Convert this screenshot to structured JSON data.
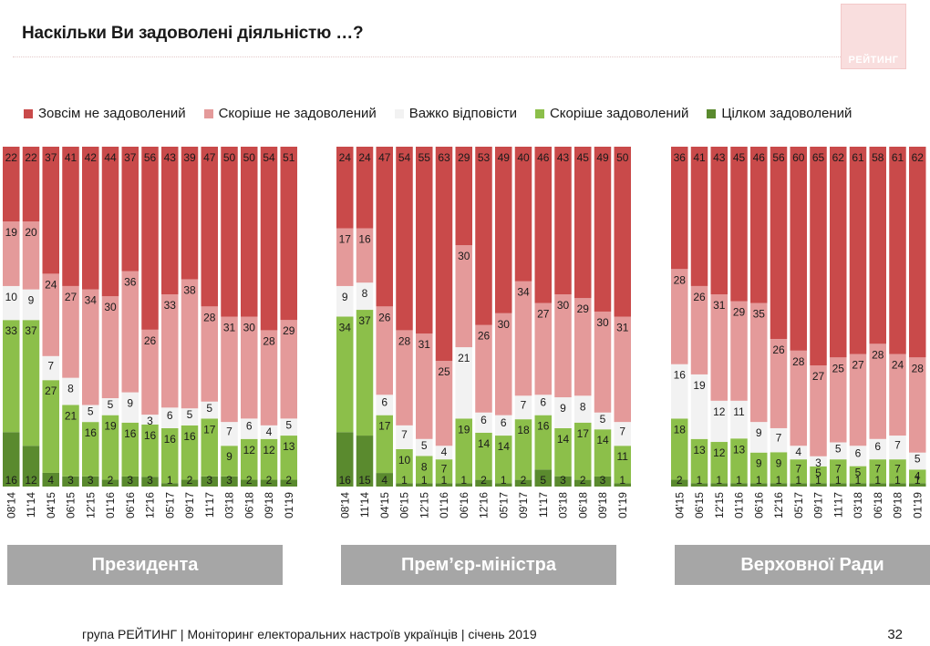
{
  "header": {
    "title": "Наскільки Ви задоволені діяльністю …?",
    "logo_text": "РЕЙТИНГ"
  },
  "footer": {
    "text": "група РЕЙТИНГ | Моніторинг електоральних настроїв українців | січень 2019",
    "page_number": "32"
  },
  "colors": {
    "very_dissatisfied": "#c94a4a",
    "rather_dissatisfied": "#e49a9a",
    "hard_to_say": "#f2f2f2",
    "rather_satisfied": "#8cbf4a",
    "fully_satisfied": "#5a8a2e"
  },
  "chart_data": {
    "type": "stacked-bar",
    "title": "Наскільки Ви задоволені діяльністю …?",
    "legend_position": "top",
    "series_names": [
      "Зовсім не задоволений",
      "Скоріше не задоволений",
      "Важко відповісти",
      "Скоріше задоволений",
      "Цілком задоволений"
    ],
    "panels": [
      {
        "label": "Президента",
        "categories": [
          "08'14",
          "11'14",
          "04'15",
          "06'15",
          "12'15",
          "01'16",
          "06'16",
          "12'16",
          "05'17",
          "09'17",
          "11'17",
          "03'18",
          "06'18",
          "09'18",
          "01'19"
        ],
        "series": [
          {
            "name": "Зовсім не задоволений",
            "values": [
              22,
              22,
              37,
              41,
              42,
              44,
              37,
              56,
              43,
              39,
              47,
              50,
              50,
              54,
              51
            ]
          },
          {
            "name": "Скоріше не задоволений",
            "values": [
              19,
              20,
              24,
              27,
              34,
              30,
              36,
              26,
              33,
              38,
              28,
              31,
              30,
              28,
              29
            ]
          },
          {
            "name": "Важко відповісти",
            "values": [
              10,
              9,
              7,
              8,
              5,
              5,
              9,
              3,
              6,
              5,
              5,
              7,
              6,
              4,
              5
            ]
          },
          {
            "name": "Скоріше задоволений",
            "values": [
              33,
              37,
              27,
              21,
              16,
              19,
              16,
              16,
              16,
              16,
              17,
              9,
              12,
              12,
              13
            ]
          },
          {
            "name": "Цілком задоволений",
            "values": [
              16,
              12,
              4,
              3,
              3,
              2,
              3,
              3,
              1,
              2,
              3,
              3,
              2,
              2,
              2
            ]
          }
        ]
      },
      {
        "label": "Прем’єр-міністра",
        "categories": [
          "08'14",
          "11'14",
          "04'15",
          "06'15",
          "12'15",
          "01'16",
          "06'16",
          "12'16",
          "05'17",
          "09'17",
          "11'17",
          "03'18",
          "06'18",
          "09'18",
          "01'19"
        ],
        "series": [
          {
            "name": "Зовсім не задоволений",
            "values": [
              24,
              24,
              47,
              54,
              55,
              63,
              29,
              53,
              49,
              40,
              46,
              43,
              45,
              49,
              50
            ]
          },
          {
            "name": "Скоріше не задоволений",
            "values": [
              17,
              16,
              26,
              28,
              31,
              25,
              30,
              26,
              30,
              34,
              27,
              30,
              29,
              30,
              31
            ]
          },
          {
            "name": "Важко відповісти",
            "values": [
              9,
              8,
              6,
              7,
              5,
              4,
              21,
              6,
              6,
              7,
              6,
              9,
              8,
              5,
              7
            ]
          },
          {
            "name": "Скоріше задоволений",
            "values": [
              34,
              37,
              17,
              10,
              8,
              7,
              19,
              14,
              14,
              18,
              16,
              14,
              17,
              14,
              11
            ]
          },
          {
            "name": "Цілком задоволений",
            "values": [
              16,
              15,
              4,
              1,
              1,
              1,
              1,
              2,
              1,
              2,
              5,
              3,
              2,
              3,
              1
            ]
          }
        ]
      },
      {
        "label": "Верховної Ради",
        "categories": [
          "04'15",
          "06'15",
          "12'15",
          "01'16",
          "06'16",
          "12'16",
          "05'17",
          "09'17",
          "11'17",
          "03'18",
          "06'18",
          "09'18",
          "01'19"
        ],
        "series": [
          {
            "name": "Зовсім не задоволений",
            "values": [
              36,
              41,
              43,
              45,
              46,
              56,
              60,
              65,
              62,
              61,
              58,
              61,
              62
            ]
          },
          {
            "name": "Скоріше не задоволений",
            "values": [
              28,
              26,
              31,
              29,
              35,
              26,
              28,
              27,
              25,
              27,
              28,
              24,
              28
            ]
          },
          {
            "name": "Важко відповісти",
            "values": [
              16,
              19,
              12,
              11,
              9,
              7,
              4,
              3,
              5,
              6,
              6,
              7,
              5
            ]
          },
          {
            "name": "Скоріше задоволений",
            "values": [
              18,
              13,
              12,
              13,
              9,
              9,
              7,
              5,
              7,
              5,
              7,
              7,
              4
            ]
          },
          {
            "name": "Цілком задоволений",
            "values": [
              2,
              1,
              1,
              1,
              1,
              1,
              1,
              1,
              1,
              1,
              1,
              1,
              1
            ]
          }
        ]
      }
    ]
  }
}
